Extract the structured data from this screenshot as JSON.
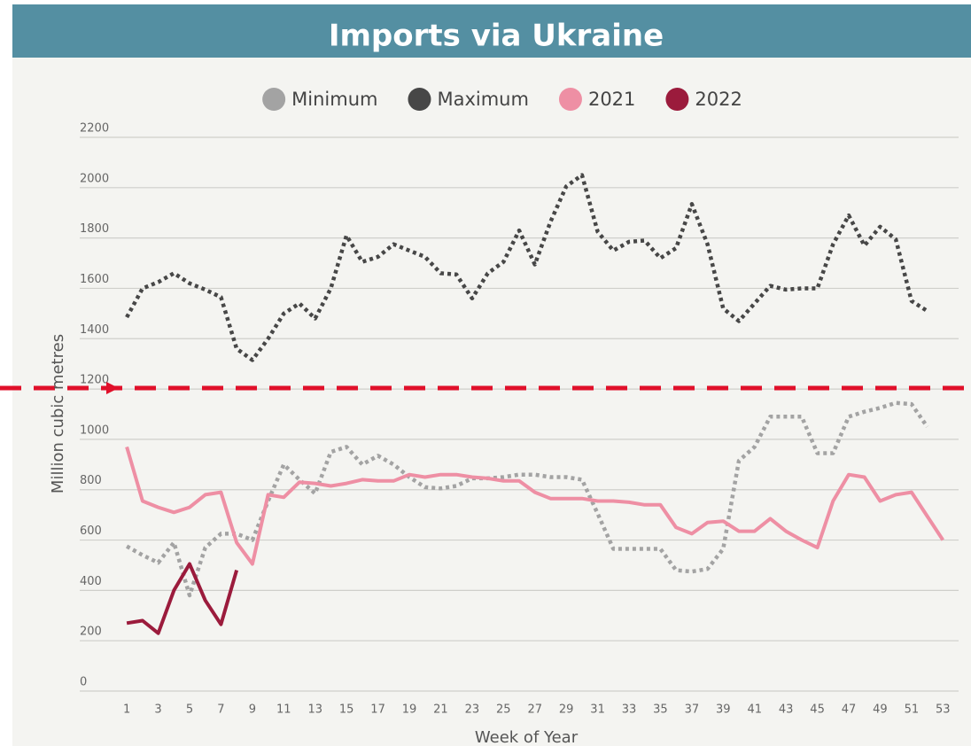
{
  "chart_data": {
    "type": "line",
    "title": "Imports via Ukraine",
    "x_label": "Week of Year",
    "y_label": "Million cubic metres",
    "x": [
      1,
      2,
      3,
      4,
      5,
      6,
      7,
      8,
      9,
      10,
      11,
      12,
      13,
      14,
      15,
      16,
      17,
      18,
      19,
      20,
      21,
      22,
      23,
      24,
      25,
      26,
      27,
      28,
      29,
      30,
      31,
      32,
      33,
      34,
      35,
      36,
      37,
      38,
      39,
      40,
      41,
      42,
      43,
      44,
      45,
      46,
      47,
      48,
      49,
      50,
      51,
      52,
      53
    ],
    "xlim": [
      -2,
      54
    ],
    "xticks": [
      1,
      3,
      5,
      7,
      9,
      11,
      13,
      15,
      17,
      19,
      21,
      23,
      25,
      27,
      29,
      31,
      33,
      35,
      37,
      39,
      41,
      43,
      45,
      47,
      49,
      51,
      53
    ],
    "ylim": [
      0,
      2200
    ],
    "yticks": [
      0,
      200,
      400,
      600,
      800,
      1000,
      1200,
      1400,
      1600,
      1800,
      2000,
      2200
    ],
    "grid": true,
    "legend": "top",
    "series": [
      {
        "name": "Minimum",
        "color": "#a3a3a3",
        "style": "dotted",
        "values": [
          575,
          540,
          510,
          590,
          380,
          570,
          625,
          625,
          600,
          755,
          900,
          840,
          785,
          950,
          970,
          900,
          935,
          900,
          850,
          810,
          805,
          815,
          845,
          845,
          850,
          860,
          860,
          850,
          850,
          840,
          705,
          565,
          565,
          565,
          565,
          480,
          475,
          485,
          565,
          915,
          970,
          1090,
          1090,
          1090,
          945,
          945,
          1090,
          1110,
          1125,
          1145,
          1140,
          1050,
          null
        ]
      },
      {
        "name": "Maximum",
        "color": "#474747",
        "style": "dotted",
        "values": [
          1485,
          1600,
          1625,
          1660,
          1620,
          1595,
          1565,
          1360,
          1315,
          1400,
          1500,
          1540,
          1480,
          1600,
          1810,
          1705,
          1725,
          1775,
          1750,
          1725,
          1660,
          1655,
          1560,
          1660,
          1705,
          1830,
          1695,
          1865,
          2005,
          2050,
          1825,
          1750,
          1785,
          1790,
          1720,
          1760,
          1935,
          1775,
          1520,
          1470,
          1540,
          1610,
          1595,
          1600,
          1600,
          1775,
          1890,
          1770,
          1845,
          1795,
          1550,
          1510,
          null
        ]
      },
      {
        "name": "2021",
        "color": "#ee8fa4",
        "style": "solid",
        "values": [
          970,
          755,
          730,
          710,
          730,
          780,
          790,
          590,
          505,
          780,
          770,
          830,
          825,
          815,
          825,
          840,
          835,
          835,
          860,
          850,
          860,
          860,
          850,
          845,
          835,
          835,
          790,
          765,
          765,
          765,
          755,
          755,
          750,
          740,
          740,
          650,
          625,
          670,
          675,
          635,
          635,
          685,
          635,
          600,
          570,
          755,
          860,
          850,
          755,
          780,
          790,
          695,
          600
        ]
      },
      {
        "name": "2022",
        "color": "#9b1b3c",
        "style": "solid",
        "values": [
          270,
          280,
          230,
          400,
          505,
          360,
          265,
          480,
          null,
          null,
          null,
          null,
          null,
          null,
          null,
          null,
          null,
          null,
          null,
          null,
          null,
          null,
          null,
          null,
          null,
          null,
          null,
          null,
          null,
          null,
          null,
          null,
          null,
          null,
          null,
          null,
          null,
          null,
          null,
          null,
          null,
          null,
          null,
          null,
          null,
          null,
          null,
          null,
          null,
          null,
          null,
          null,
          null
        ]
      }
    ]
  }
}
